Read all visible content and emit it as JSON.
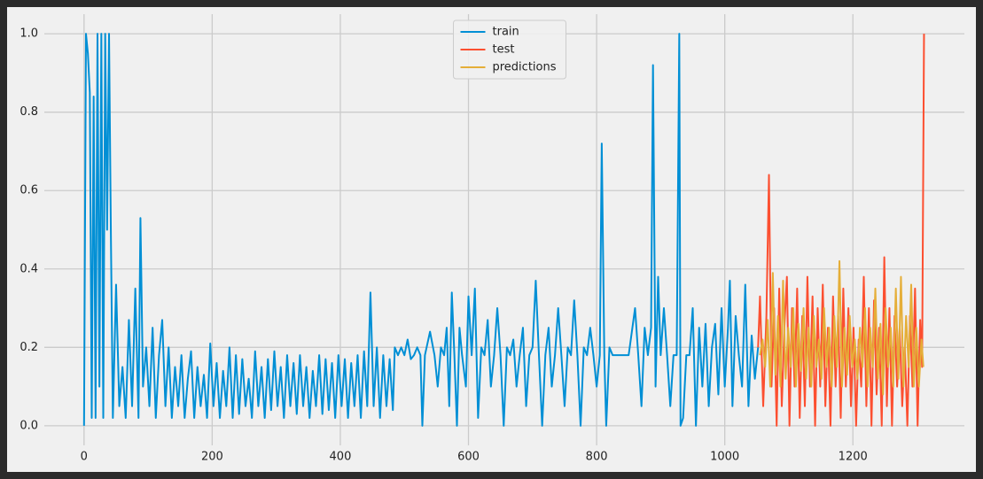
{
  "chart_data": {
    "type": "line",
    "xlim": [
      -62,
      1374
    ],
    "ylim": [
      -0.05,
      1.05
    ],
    "xticks": [
      0,
      200,
      400,
      600,
      800,
      1000,
      1200
    ],
    "yticks": [
      {
        "value": 0,
        "label": "0.0"
      },
      0.2,
      0.4,
      0.6,
      0.8,
      {
        "value": 1,
        "label": "1.0"
      }
    ],
    "grid": true,
    "legend": "upper center",
    "series": [
      {
        "name": "train",
        "color": "#008fd5",
        "x": [
          0,
          3,
          6,
          9,
          12,
          15,
          18,
          21,
          24,
          27,
          30,
          33,
          36,
          39,
          42,
          45,
          50,
          55,
          60,
          65,
          70,
          75,
          80,
          85,
          88,
          92,
          97,
          102,
          107,
          112,
          117,
          122,
          127,
          132,
          137,
          142,
          147,
          152,
          157,
          162,
          167,
          172,
          177,
          182,
          187,
          192,
          197,
          202,
          207,
          212,
          217,
          222,
          227,
          232,
          237,
          242,
          247,
          252,
          257,
          262,
          267,
          272,
          277,
          282,
          287,
          292,
          297,
          302,
          307,
          312,
          317,
          322,
          327,
          332,
          337,
          342,
          347,
          352,
          357,
          362,
          367,
          372,
          377,
          382,
          387,
          392,
          397,
          402,
          407,
          412,
          417,
          422,
          427,
          432,
          437,
          442,
          447,
          452,
          457,
          462,
          467,
          472,
          477,
          482,
          485,
          490,
          495,
          500,
          505,
          510,
          515,
          520,
          525,
          528,
          532,
          540,
          547,
          552,
          557,
          562,
          566,
          570,
          574,
          578,
          582,
          586,
          590,
          596,
          600,
          605,
          610,
          615,
          620,
          625,
          630,
          635,
          640,
          645,
          650,
          655,
          660,
          665,
          670,
          675,
          680,
          685,
          690,
          695,
          700,
          705,
          710,
          715,
          720,
          725,
          730,
          735,
          740,
          745,
          750,
          755,
          760,
          765,
          770,
          775,
          780,
          785,
          790,
          795,
          800,
          805,
          808,
          812,
          815,
          820,
          825,
          830,
          840,
          850,
          860,
          865,
          870,
          875,
          880,
          885,
          888,
          892,
          896,
          900,
          905,
          910,
          915,
          920,
          925,
          929,
          931,
          935,
          940,
          945,
          950,
          955,
          960,
          965,
          970,
          975,
          980,
          985,
          990,
          995,
          1000,
          1005,
          1008,
          1012,
          1017,
          1022,
          1027,
          1032,
          1037,
          1042,
          1047,
          1052
        ],
        "values": [
          0,
          1.0,
          0.95,
          0.85,
          0.02,
          0.84,
          0.02,
          1.0,
          0.1,
          1.0,
          0.02,
          1.0,
          0.5,
          1.0,
          0.47,
          0.02,
          0.36,
          0.05,
          0.15,
          0.02,
          0.27,
          0.05,
          0.35,
          0.02,
          0.53,
          0.1,
          0.2,
          0.05,
          0.25,
          0.02,
          0.18,
          0.27,
          0.05,
          0.2,
          0.02,
          0.15,
          0.05,
          0.18,
          0.02,
          0.12,
          0.19,
          0.02,
          0.15,
          0.05,
          0.13,
          0.02,
          0.21,
          0.05,
          0.16,
          0.02,
          0.14,
          0.05,
          0.2,
          0.02,
          0.18,
          0.03,
          0.17,
          0.05,
          0.12,
          0.02,
          0.19,
          0.05,
          0.15,
          0.02,
          0.17,
          0.04,
          0.19,
          0.05,
          0.15,
          0.02,
          0.18,
          0.05,
          0.16,
          0.03,
          0.18,
          0.05,
          0.15,
          0.02,
          0.14,
          0.05,
          0.18,
          0.03,
          0.17,
          0.04,
          0.16,
          0.02,
          0.18,
          0.05,
          0.17,
          0.02,
          0.16,
          0.05,
          0.18,
          0.02,
          0.19,
          0.05,
          0.34,
          0.05,
          0.2,
          0.02,
          0.18,
          0.05,
          0.17,
          0.04,
          0.2,
          0.18,
          0.2,
          0.18,
          0.22,
          0.17,
          0.18,
          0.2,
          0.18,
          0.0,
          0.18,
          0.24,
          0.18,
          0.1,
          0.2,
          0.18,
          0.25,
          0.05,
          0.34,
          0.18,
          0.0,
          0.25,
          0.18,
          0.1,
          0.33,
          0.18,
          0.35,
          0.02,
          0.2,
          0.18,
          0.27,
          0.1,
          0.18,
          0.3,
          0.18,
          0.0,
          0.2,
          0.18,
          0.22,
          0.1,
          0.18,
          0.25,
          0.05,
          0.18,
          0.2,
          0.37,
          0.18,
          0.0,
          0.18,
          0.25,
          0.1,
          0.18,
          0.3,
          0.18,
          0.05,
          0.2,
          0.18,
          0.32,
          0.18,
          0.0,
          0.2,
          0.18,
          0.25,
          0.18,
          0.1,
          0.18,
          0.72,
          0.18,
          0.0,
          0.2,
          0.18,
          0.18,
          0.18,
          0.18,
          0.3,
          0.18,
          0.05,
          0.25,
          0.18,
          0.25,
          0.92,
          0.1,
          0.38,
          0.18,
          0.3,
          0.18,
          0.05,
          0.18,
          0.18,
          1.0,
          0.0,
          0.02,
          0.18,
          0.18,
          0.3,
          0.0,
          0.25,
          0.1,
          0.26,
          0.05,
          0.2,
          0.26,
          0.08,
          0.3,
          0.1,
          0.25,
          0.37,
          0.05,
          0.28,
          0.18,
          0.1,
          0.36,
          0.05,
          0.23,
          0.12,
          0.2
        ]
      },
      {
        "name": "test",
        "color": "#fc4f30",
        "x": [
          1052,
          1055,
          1060,
          1065,
          1069,
          1073,
          1077,
          1081,
          1085,
          1089,
          1093,
          1097,
          1101,
          1105,
          1109,
          1113,
          1117,
          1121,
          1125,
          1129,
          1133,
          1137,
          1141,
          1145,
          1149,
          1153,
          1157,
          1161,
          1165,
          1169,
          1173,
          1177,
          1181,
          1185,
          1189,
          1193,
          1197,
          1201,
          1205,
          1209,
          1213,
          1217,
          1221,
          1225,
          1229,
          1233,
          1237,
          1241,
          1245,
          1249,
          1253,
          1257,
          1261,
          1265,
          1269,
          1273,
          1277,
          1281,
          1285,
          1289,
          1293,
          1297,
          1301,
          1305,
          1308,
          1311
        ],
        "values": [
          0.2,
          0.33,
          0.05,
          0.28,
          0.64,
          0.1,
          0.3,
          0.0,
          0.35,
          0.05,
          0.25,
          0.38,
          0.0,
          0.3,
          0.1,
          0.35,
          0.02,
          0.28,
          0.05,
          0.38,
          0.1,
          0.33,
          0.0,
          0.3,
          0.1,
          0.36,
          0.05,
          0.25,
          0.0,
          0.33,
          0.1,
          0.28,
          0.02,
          0.35,
          0.1,
          0.3,
          0.05,
          0.25,
          0.0,
          0.22,
          0.1,
          0.38,
          0.05,
          0.3,
          0.0,
          0.32,
          0.08,
          0.25,
          0.0,
          0.43,
          0.05,
          0.3,
          0.0,
          0.28,
          0.1,
          0.25,
          0.05,
          0.2,
          0.0,
          0.28,
          0.1,
          0.35,
          0.0,
          0.27,
          0.15,
          1.0
        ]
      },
      {
        "name": "predictions",
        "color": "#e5ae38",
        "x": [
          1055,
          1059,
          1063,
          1067,
          1071,
          1075,
          1079,
          1083,
          1087,
          1091,
          1095,
          1099,
          1103,
          1107,
          1111,
          1115,
          1119,
          1123,
          1127,
          1131,
          1135,
          1139,
          1143,
          1147,
          1151,
          1155,
          1159,
          1163,
          1167,
          1171,
          1175,
          1179,
          1183,
          1187,
          1191,
          1195,
          1199,
          1203,
          1207,
          1211,
          1215,
          1219,
          1223,
          1227,
          1231,
          1235,
          1239,
          1243,
          1247,
          1251,
          1255,
          1259,
          1263,
          1267,
          1271,
          1275,
          1279,
          1283,
          1287,
          1291,
          1295,
          1299,
          1303,
          1307,
          1310
        ],
        "values": [
          0.18,
          0.22,
          0.15,
          0.27,
          0.1,
          0.39,
          0.13,
          0.28,
          0.1,
          0.37,
          0.12,
          0.25,
          0.15,
          0.3,
          0.1,
          0.26,
          0.14,
          0.3,
          0.12,
          0.25,
          0.1,
          0.28,
          0.15,
          0.22,
          0.12,
          0.3,
          0.15,
          0.25,
          0.1,
          0.28,
          0.15,
          0.42,
          0.1,
          0.25,
          0.13,
          0.28,
          0.15,
          0.22,
          0.12,
          0.25,
          0.15,
          0.3,
          0.1,
          0.25,
          0.15,
          0.35,
          0.12,
          0.26,
          0.08,
          0.3,
          0.15,
          0.25,
          0.1,
          0.35,
          0.12,
          0.38,
          0.1,
          0.28,
          0.15,
          0.36,
          0.1,
          0.25,
          0.1,
          0.22,
          0.15
        ]
      }
    ]
  }
}
